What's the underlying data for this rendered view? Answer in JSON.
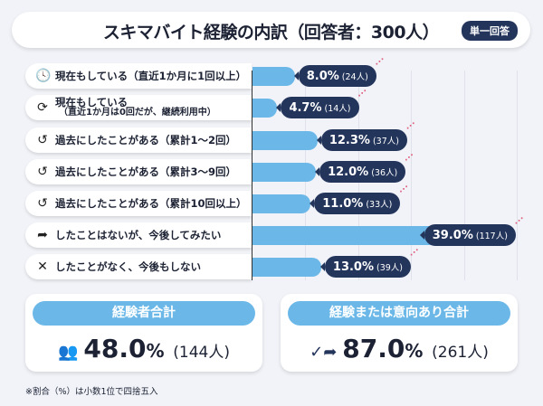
{
  "header": {
    "title": "スキマバイト経験の内訳（回答者：300人）",
    "badge": "単一回答"
  },
  "chart_data": {
    "type": "bar",
    "orientation": "horizontal",
    "title": "スキマバイト経験の内訳（回答者：300人）",
    "xlim": [
      0,
      50
    ],
    "grid": true,
    "bar_color": "#6bb8e8",
    "label_color": "#24355c",
    "categories": [
      {
        "icon": "clock-icon",
        "label": "現在もしている（直近1か月に1回以上）",
        "sub": ""
      },
      {
        "icon": "refresh-icon",
        "label": "現在もしている",
        "sub": "（直近1か月は0回だが、継続利用中）"
      },
      {
        "icon": "history-icon",
        "label": "過去にしたことがある（累計1～2回）",
        "sub": ""
      },
      {
        "icon": "history-icon",
        "label": "過去にしたことがある（累計3～9回）",
        "sub": ""
      },
      {
        "icon": "history-icon",
        "label": "過去にしたことがある（累計10回以上）",
        "sub": ""
      },
      {
        "icon": "share-arrow-icon",
        "label": "したことはないが、今後してみたい",
        "sub": ""
      },
      {
        "icon": "x-icon",
        "label": "したことがなく、今後もしない",
        "sub": ""
      }
    ],
    "values": [
      8.0,
      4.7,
      12.3,
      12.0,
      11.0,
      39.0,
      13.0
    ],
    "value_labels": [
      "8.0%",
      "4.7%",
      "12.3%",
      "12.0%",
      "11.0%",
      "39.0%",
      "13.0%"
    ],
    "counts": [
      "(24人)",
      "(14人)",
      "(37人)",
      "(36人)",
      "(33人)",
      "(117人)",
      "(39人)"
    ]
  },
  "summary": [
    {
      "title": "経験者合計",
      "icon": "people-icon",
      "value": "48.0",
      "unit": "%",
      "count": "(144人)"
    },
    {
      "title": "経験または意向あり合計",
      "icon": "check-arrow-icon",
      "value": "87.0",
      "unit": "%",
      "count": "(261人)"
    }
  ],
  "note": "※割合（%）は小数1位で四捨五入"
}
